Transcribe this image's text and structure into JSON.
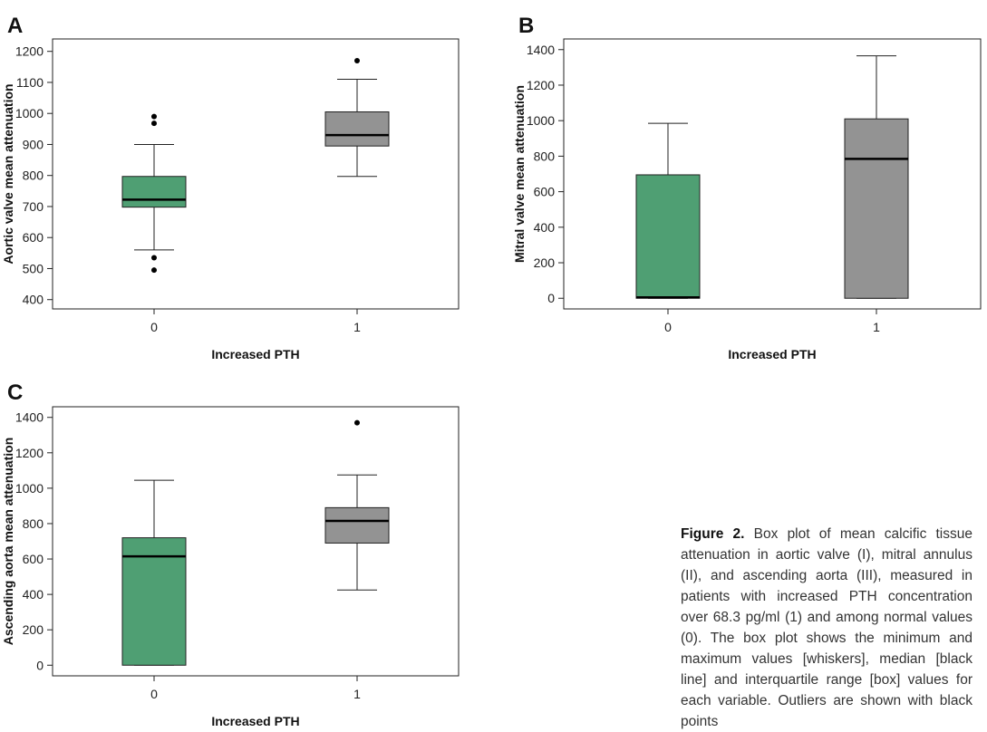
{
  "colors": {
    "group0": "#4f9f73",
    "group1": "#939393",
    "median": "#000000"
  },
  "chart_data": [
    {
      "type": "box",
      "panel": "A",
      "xlabel": "Increased PTH",
      "ylabel": "Aortic valve mean attenuation",
      "ylim": [
        370,
        1240
      ],
      "yticks": [
        400,
        500,
        600,
        700,
        800,
        900,
        1000,
        1100,
        1200
      ],
      "grid": false,
      "categories": [
        "0",
        "1"
      ],
      "boxes": [
        {
          "category": "0",
          "min": 560,
          "q1": 698,
          "median": 722,
          "q3": 797,
          "max": 900,
          "outliers": [
            990,
            968,
            535,
            495
          ]
        },
        {
          "category": "1",
          "min": 797,
          "q1": 895,
          "median": 930,
          "q3": 1005,
          "max": 1110,
          "outliers": [
            1170
          ]
        }
      ]
    },
    {
      "type": "box",
      "panel": "B",
      "xlabel": "Increased PTH",
      "ylabel": "Mitral valve mean attenuation",
      "ylim": [
        -60,
        1460
      ],
      "yticks": [
        0,
        200,
        400,
        600,
        800,
        1000,
        1200,
        1400
      ],
      "grid": false,
      "categories": [
        "0",
        "1"
      ],
      "boxes": [
        {
          "category": "0",
          "min": 0,
          "q1": 0,
          "median": 5,
          "q3": 695,
          "max": 985,
          "outliers": []
        },
        {
          "category": "1",
          "min": 0,
          "q1": 0,
          "median": 785,
          "q3": 1010,
          "max": 1365,
          "outliers": []
        }
      ]
    },
    {
      "type": "box",
      "panel": "C",
      "xlabel": "Increased PTH",
      "ylabel": "Ascending aorta mean attenuation",
      "ylim": [
        -60,
        1460
      ],
      "yticks": [
        0,
        200,
        400,
        600,
        800,
        1000,
        1200,
        1400
      ],
      "grid": false,
      "categories": [
        "0",
        "1"
      ],
      "boxes": [
        {
          "category": "0",
          "min": 0,
          "q1": 0,
          "median": 615,
          "q3": 720,
          "max": 1045,
          "outliers": []
        },
        {
          "category": "1",
          "min": 425,
          "q1": 690,
          "median": 815,
          "q3": 890,
          "max": 1075,
          "outliers": [
            1370
          ]
        }
      ]
    }
  ],
  "caption": {
    "label": "Figure 2.",
    "text": "Box plot of mean calcific tissue attenuation in aortic valve (I), mitral annulus (II), and ascending aorta (III), measured in patients with increased PTH concentration over 68.3 pg/ml (1) and among normal values (0). The box plot shows the minimum and maximum values [whiskers], median [black line] and interquartile range [box] values for each variable. Outliers are shown with black points"
  }
}
